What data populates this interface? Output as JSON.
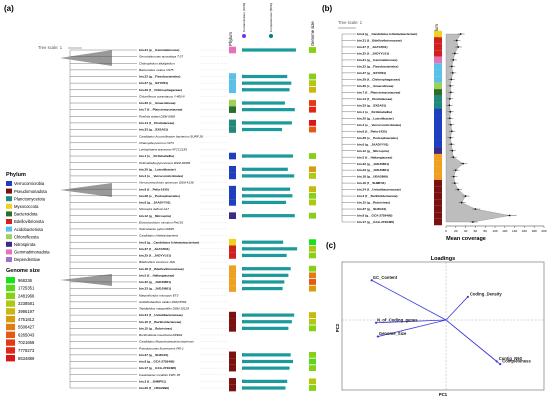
{
  "panels": {
    "a": "(a)",
    "b": "(b)",
    "c": "(c)"
  },
  "tree_scale": "Tree scale: 1",
  "column_headers": {
    "phylum": "Phylum",
    "contamination": "Contamination (10%)",
    "completeness": "Completeness (50%)",
    "genome_size": "Genome size"
  },
  "phylum_legend": {
    "title": "Phylum",
    "items": [
      {
        "name": "Verrucomicrobia",
        "color": "#1f3fbf"
      },
      {
        "name": "Pseudomonadota",
        "color": "#7b1010"
      },
      {
        "name": "Planctomycetota",
        "color": "#1f8a7a"
      },
      {
        "name": "Myxococcota",
        "color": "#f0d020"
      },
      {
        "name": "Bacteroidota",
        "color": "#2a6e2a"
      },
      {
        "name": "Bdellovibrionota",
        "color": "#d02020"
      },
      {
        "name": "Acidobacteriota",
        "color": "#5bc0e8"
      },
      {
        "name": "Chloroflexota",
        "color": "#9fd05a"
      },
      {
        "name": "Nitrospirota",
        "color": "#3a2a8a"
      },
      {
        "name": "Gemmatimonadota",
        "color": "#e870b8"
      },
      {
        "name": "Dependentiae",
        "color": "#a070d0"
      }
    ]
  },
  "genome_legend": {
    "title": "Genome size",
    "items": [
      {
        "value": "968236",
        "color": "#1adf1a"
      },
      {
        "value": "1725351",
        "color": "#5ad81a"
      },
      {
        "value": "2481966",
        "color": "#88d016"
      },
      {
        "value": "3238581",
        "color": "#b0c812"
      },
      {
        "value": "3995197",
        "color": "#c8b810"
      },
      {
        "value": "4751812",
        "color": "#d89c10"
      },
      {
        "value": "5508427",
        "color": "#e07c10"
      },
      {
        "value": "6265043",
        "color": "#e45a12"
      },
      {
        "value": "7021658",
        "color": "#e43a14"
      },
      {
        "value": "7778273",
        "color": "#e02616"
      },
      {
        "value": "8534889",
        "color": "#d81818"
      }
    ]
  },
  "tree_a_taxa": [
    {
      "label": "bin.31 (p__Gemmatimonas)",
      "bold": true,
      "phylum": "#e870b8",
      "comp": 0.93,
      "cont": 0.02,
      "gs": "#88d016"
    },
    {
      "label": "Gemmatimonas aurantiaca T-27",
      "bold": false,
      "phylum": "",
      "comp": 0,
      "cont": 0,
      "gs": ""
    },
    {
      "label": "Chitinophilum alkaliphilum",
      "bold": false,
      "phylum": "",
      "comp": 0,
      "cont": 0,
      "gs": ""
    },
    {
      "label": "Bacteroides ovatus V975",
      "bold": false,
      "phylum": "",
      "comp": 0,
      "cont": 0,
      "gs": ""
    },
    {
      "label": "bin.22 (g__Flavobacteriales)",
      "bold": true,
      "phylum": "#5bc0e8",
      "comp": 0.78,
      "cont": 0.05,
      "gs": "#88d016"
    },
    {
      "label": "bin.27 (g__SXYR01)",
      "bold": true,
      "phylum": "#5bc0e8",
      "comp": 0.85,
      "cont": 0.03,
      "gs": "#b0c812"
    },
    {
      "label": "bin.29 (f__Chitinophagaceae)",
      "bold": true,
      "phylum": "#5bc0e8",
      "comp": 0.82,
      "cont": 0.04,
      "gs": "#c8b810"
    },
    {
      "label": "Chloroflexus aurantiacus Y-400-fl",
      "bold": false,
      "phylum": "",
      "comp": 0,
      "cont": 0,
      "gs": ""
    },
    {
      "label": "bin.30 (c__Anaerolineae)",
      "bold": true,
      "phylum": "#9fd05a",
      "comp": 0.74,
      "cont": 0.06,
      "gs": "#e43a14"
    },
    {
      "label": "bin.7 (f__Planctomycetaceae)",
      "bold": true,
      "phylum": "#2a6e2a",
      "comp": 0.91,
      "cont": 0.02,
      "gs": "#e02616"
    },
    {
      "label": "Pirellula staleyi DSM 6068",
      "bold": false,
      "phylum": "",
      "comp": 0,
      "cont": 0,
      "gs": ""
    },
    {
      "label": "bin.14 (f__Pirellulaceae)",
      "bold": true,
      "phylum": "#1f8a7a",
      "comp": 0.86,
      "cont": 0.04,
      "gs": "#d81818"
    },
    {
      "label": "bin.33 (g__SXSA01)",
      "bold": true,
      "phylum": "#1f8a7a",
      "comp": 0.69,
      "cont": 0.03,
      "gs": "#e45a12"
    },
    {
      "label": "Candidatus Acumulibacter bacterium SURF 26",
      "bold": false,
      "phylum": "",
      "comp": 0,
      "cont": 0,
      "gs": ""
    },
    {
      "label": "Chlamydia pecorum W73",
      "bold": false,
      "phylum": "",
      "comp": 0,
      "cont": 0,
      "gs": ""
    },
    {
      "label": "Lentisphaera araneosa HTCC2155",
      "bold": false,
      "phylum": "",
      "comp": 0,
      "cont": 0,
      "gs": ""
    },
    {
      "label": "bin.1 (o__Kiritimatiellia)",
      "bold": true,
      "phylum": "#1f3fbf",
      "comp": 0.88,
      "cont": 0.05,
      "gs": "#88d016"
    },
    {
      "label": "Kiritimatiella glycovorans DSM 26986",
      "bold": false,
      "phylum": "",
      "comp": 0,
      "cont": 0,
      "gs": ""
    },
    {
      "label": "bin.20 (g__Luteolibacter)",
      "bold": true,
      "phylum": "#1f3fbf",
      "comp": 0.79,
      "cont": 0.03,
      "gs": "#d89c10"
    },
    {
      "label": "bin.4 (o__Verrucomicrobiales)",
      "bold": true,
      "phylum": "#1f3fbf",
      "comp": 0.9,
      "cont": 0.02,
      "gs": "#b0c812"
    },
    {
      "label": "Verrucomicrobium spinosum DSM 4136",
      "bold": false,
      "phylum": "",
      "comp": 0,
      "cont": 0,
      "gs": ""
    },
    {
      "label": "bin.8 (f__Pelia-1435)",
      "bold": true,
      "phylum": "#1f3fbf",
      "comp": 0.83,
      "cont": 0.04,
      "gs": "#c8b810"
    },
    {
      "label": "bin.28 (o__Pedosphaerales)",
      "bold": true,
      "phylum": "#1f3fbf",
      "comp": 0.87,
      "cont": 0.03,
      "gs": "#88d016"
    },
    {
      "label": "bin.6 (g__JAADYY01)",
      "bold": true,
      "phylum": "#1f3fbf",
      "comp": 0.76,
      "cont": 0.05,
      "gs": "#b0c812"
    },
    {
      "label": "Nitrospira defluvii A17",
      "bold": false,
      "phylum": "",
      "comp": 0,
      "cont": 0,
      "gs": ""
    },
    {
      "label": "bin.12 (g__Nitrospira)",
      "bold": true,
      "phylum": "#3a2a8a",
      "comp": 0.91,
      "cont": 0.02,
      "gs": "#88d016"
    },
    {
      "label": "Elusimicrobium minutum Pei191",
      "bold": false,
      "phylum": "",
      "comp": 0,
      "cont": 0,
      "gs": ""
    },
    {
      "label": "Helicobacter pylori 26695",
      "bold": false,
      "phylum": "",
      "comp": 0,
      "cont": 0,
      "gs": ""
    },
    {
      "label": "Candidatus Ishiwtaobacteria",
      "bold": false,
      "phylum": "",
      "comp": 0,
      "cont": 0,
      "gs": ""
    },
    {
      "label": "bin.9 (g__Candidatus Ishiwtaobacterium)",
      "bold": true,
      "phylum": "#f0d020",
      "comp": 0.71,
      "cont": 0.0,
      "gs": "#1adf1a"
    },
    {
      "label": "bin.37 (f__JAAYZI01)",
      "bold": true,
      "phylum": "#d02020",
      "comp": 0.95,
      "cont": 0.03,
      "gs": "#b0c812"
    },
    {
      "label": "bin.25 (f__JADYYL01)",
      "bold": true,
      "phylum": "#d02020",
      "comp": 0.77,
      "cont": 0.04,
      "gs": "#88d016"
    },
    {
      "label": "Bdellovibrio exovorus JSS",
      "bold": false,
      "phylum": "",
      "comp": 0,
      "cont": 0,
      "gs": ""
    },
    {
      "label": "bin.18 (f__Bdellovibrionaceae)",
      "bold": true,
      "phylum": "#f0a020",
      "comp": 0.84,
      "cont": 0.05,
      "gs": "#88d016"
    },
    {
      "label": "bin.5 (f__Haliangiaceae)",
      "bold": true,
      "phylum": "#f0a020",
      "comp": 0.8,
      "cont": 0.03,
      "gs": "#e07c10"
    },
    {
      "label": "bin.32 (g__JADJ0801)",
      "bold": true,
      "phylum": "#f0a020",
      "comp": 0.73,
      "cont": 0.06,
      "gs": "#e45a12"
    },
    {
      "label": "bin.23 (g__JADJ0801)",
      "bold": true,
      "phylum": "#f0a020",
      "comp": 0.7,
      "cont": 0.04,
      "gs": "#d89c10"
    },
    {
      "label": "Marpinifundus micropus ET3",
      "bold": false,
      "phylum": "",
      "comp": 0,
      "cont": 0,
      "gs": ""
    },
    {
      "label": "Acidithiobacillus caldus DSM 8584",
      "bold": false,
      "phylum": "",
      "comp": 0,
      "cont": 0,
      "gs": ""
    },
    {
      "label": "Tepidiphilus margaritifer DSM 15129",
      "bold": false,
      "phylum": "",
      "comp": 0,
      "cont": 0,
      "gs": ""
    },
    {
      "label": "bin.24 (f__Usitatibacteraceae)",
      "bold": true,
      "phylum": "#7b1010",
      "comp": 0.9,
      "cont": 0.04,
      "gs": "#c8b810"
    },
    {
      "label": "bin.16 (f__Burkholderiaceae)",
      "bold": true,
      "phylum": "#7b1010",
      "comp": 0.86,
      "cont": 0.03,
      "gs": "#b0c812"
    },
    {
      "label": "bin.15 (g__Rubrivivax)",
      "bold": true,
      "phylum": "#7b1010",
      "comp": 0.8,
      "cont": 0.05,
      "gs": "#88d016"
    },
    {
      "label": "Burkholderia insecticola RPE64",
      "bold": false,
      "phylum": "",
      "comp": 0,
      "cont": 0,
      "gs": ""
    },
    {
      "label": "Candidatus Muproteobacteria bacterium",
      "bold": false,
      "phylum": "",
      "comp": 0,
      "cont": 0,
      "gs": ""
    },
    {
      "label": "Pseudomonas fluorescens Pf0-1",
      "bold": false,
      "phylum": "",
      "comp": 0,
      "cont": 0,
      "gs": ""
    },
    {
      "label": "bin.37 (g__SHZG01)",
      "bold": true,
      "phylum": "#7b1010",
      "comp": 0.84,
      "cont": 0.04,
      "gs": "#88d016"
    },
    {
      "label": "bin.8 (g__GCA-2729495)",
      "bold": true,
      "phylum": "#7b1010",
      "comp": 0.88,
      "cont": 0.03,
      "gs": "#5ad81a"
    },
    {
      "label": "bin.17 (g__GCA-2729495)",
      "bold": true,
      "phylum": "#7b1010",
      "comp": 0.82,
      "cont": 0.02,
      "gs": "#88d016"
    },
    {
      "label": "Caulobacter mirabilis FWC 38",
      "bold": false,
      "phylum": "",
      "comp": 0,
      "cont": 0,
      "gs": ""
    },
    {
      "label": "bin.3 (f__SHMF01)",
      "bold": true,
      "phylum": "#7b1010",
      "comp": 0.78,
      "cont": 0.05,
      "gs": "#b0c812"
    },
    {
      "label": "bin.26 (f__UBA2999)",
      "bold": true,
      "phylum": "#7b1010",
      "comp": 0.75,
      "cont": 0.03,
      "gs": "#88d016"
    }
  ],
  "panel_b": {
    "tree_scale": "Tree scale: 1",
    "phylum_header": "Phylum",
    "xlabel": "Mean coverage",
    "ticks": [
      "0",
      "20",
      "40",
      "60",
      "80",
      "100",
      "120",
      "140",
      "160",
      "180",
      "200"
    ],
    "rows": [
      {
        "label": "bin.9 (g__Candidatus Ishiwtaobacterium)",
        "color": "#f0d020",
        "value": 30
      },
      {
        "label": "bin.31 (f__Bdellovibrionaceae)",
        "color": "#d02020",
        "value": 22
      },
      {
        "label": "bin.37 (f__JAAYZI01)",
        "color": "#d02020",
        "value": 25
      },
      {
        "label": "bin.25 (f__JADYYL01)",
        "color": "#d02020",
        "value": 18
      },
      {
        "label": "bin.31 (g__Gemmatimonas)",
        "color": "#e870b8",
        "value": 15
      },
      {
        "label": "bin.22 (g__Flavobacteriales)",
        "color": "#5bc0e8",
        "value": 12
      },
      {
        "label": "bin.27 (g__SXYR01)",
        "color": "#5bc0e8",
        "value": 14
      },
      {
        "label": "bin.29 (f__Chitinophagaceae)",
        "color": "#5bc0e8",
        "value": 11
      },
      {
        "label": "bin.30 (c__Anaerolineae)",
        "color": "#9fd05a",
        "value": 9
      },
      {
        "label": "bin.7 (f__Planctomycetaceae)",
        "color": "#2a6e2a",
        "value": 10
      },
      {
        "label": "bin.14 (f__Pirellulaceae)",
        "color": "#1f8a7a",
        "value": 8
      },
      {
        "label": "bin.33 (g__SXSA01)",
        "color": "#1f8a7a",
        "value": 7
      },
      {
        "label": "bin.1 (o__Kiritimatiellia)",
        "color": "#1f3fbf",
        "value": 9
      },
      {
        "label": "bin.20 (g__Luteolibacter)",
        "color": "#1f3fbf",
        "value": 8
      },
      {
        "label": "bin.4 (o__Verrucomicrobiales)",
        "color": "#1f3fbf",
        "value": 10
      },
      {
        "label": "bin.8 (f__Pelia-1435)",
        "color": "#1f3fbf",
        "value": 12
      },
      {
        "label": "bin.28 (o__Pedosphaerales)",
        "color": "#1f3fbf",
        "value": 9
      },
      {
        "label": "bin.6 (g__JAADYY01)",
        "color": "#1f3fbf",
        "value": 11
      },
      {
        "label": "bin.12 (g__Nitrospira)",
        "color": "#3a2a8a",
        "value": 13
      },
      {
        "label": "bin.5 (f__Haliangiaceae)",
        "color": "#f0a020",
        "value": 15
      },
      {
        "label": "bin.32 (g__JADJ0801)",
        "color": "#f0a020",
        "value": 35
      },
      {
        "label": "bin.23 (g__JADJ0801)",
        "color": "#f0a020",
        "value": 20
      },
      {
        "label": "bin.18 (g__UBA2999)",
        "color": "#f0a020",
        "value": 16
      },
      {
        "label": "bin.16 (f__SHMF01)",
        "color": "#7b1010",
        "value": 18
      },
      {
        "label": "bin.24 (f__Usitatibacteraceae)",
        "color": "#7b1010",
        "value": 25
      },
      {
        "label": "bin.3 (f__Burkholderiaceae)",
        "color": "#7b1010",
        "value": 40
      },
      {
        "label": "bin.15 (g__Rubrivivax)",
        "color": "#7b1010",
        "value": 32
      },
      {
        "label": "bin.37 (g__SHZG01)",
        "color": "#7b1010",
        "value": 60
      },
      {
        "label": "bin.8 (g__GCA-2729495)",
        "color": "#7b1010",
        "value": 130
      },
      {
        "label": "bin.17 (g__GCA-2729495)",
        "color": "#7b1010",
        "value": 55
      }
    ]
  },
  "chart_data": {
    "type": "scatter",
    "title": "Loadings",
    "xlabel": "PC1",
    "ylabel": "PC2",
    "arrows": [
      {
        "name": "GC_Content",
        "x": -0.85,
        "y": 0.72
      },
      {
        "name": "Coding_Density",
        "x": 0.25,
        "y": 0.42
      },
      {
        "name": "N_of_Coding_genes",
        "x": -0.8,
        "y": -0.05
      },
      {
        "name": "Genome_Size",
        "x": -0.78,
        "y": -0.3
      },
      {
        "name": "Contig_N50",
        "x": 0.58,
        "y": -0.75
      },
      {
        "name": "Completeness",
        "x": 0.62,
        "y": -0.8
      }
    ]
  }
}
